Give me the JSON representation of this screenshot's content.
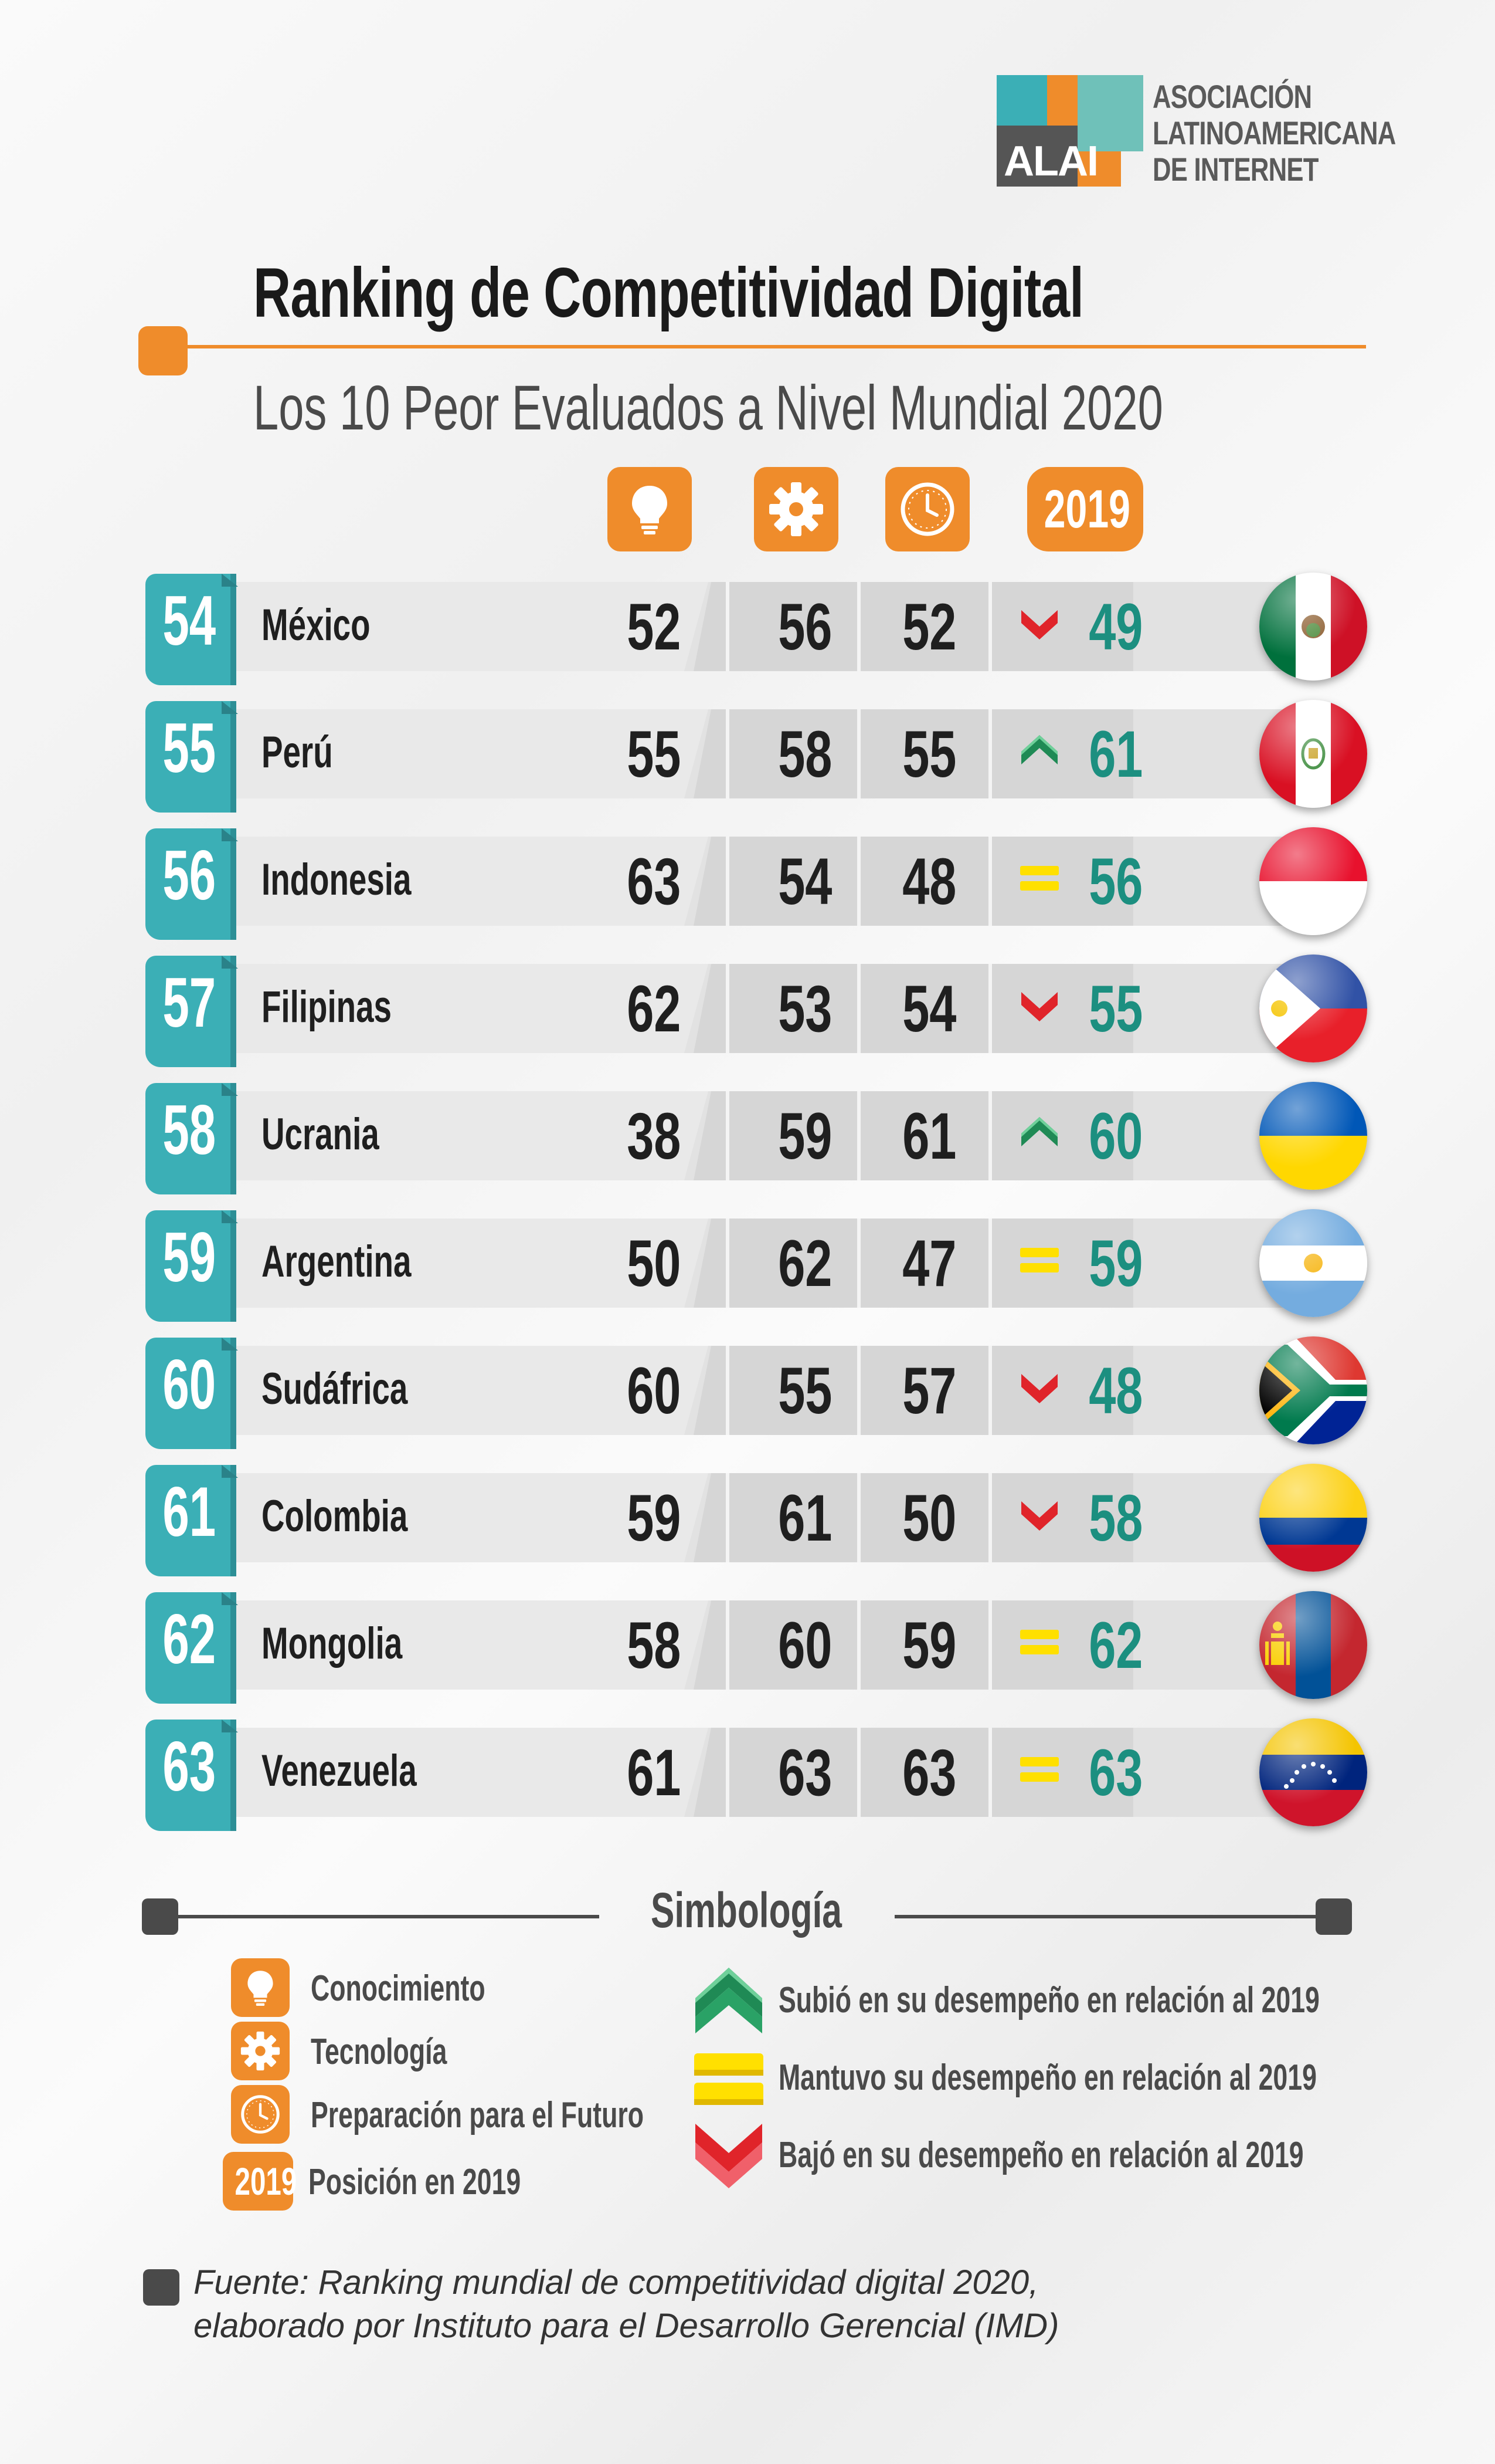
{
  "logo": {
    "abbr": "ALAI",
    "line1": "ASOCIACIÓN",
    "line2": "LATINOAMERICANA",
    "line3": "DE INTERNET"
  },
  "title": "Ranking de Competitividad Digital",
  "subtitle": "Los 10 Peor Evaluados a Nivel Mundial 2020",
  "headers": {
    "col1_icon": "lightbulb-icon",
    "col2_icon": "gear-icon",
    "col3_icon": "clock-icon",
    "year": "2019"
  },
  "colors": {
    "accent": "#ef8c2b",
    "teal": "#3bafb6",
    "green": "#1c8f80",
    "up": "#1f8a55",
    "down": "#e0242a",
    "same": "#ffe000"
  },
  "rows": [
    {
      "rank": "54",
      "country": "México",
      "c1": "52",
      "c2": "56",
      "c3": "52",
      "trend": "down",
      "prev": "49",
      "flag": "mexico-flag"
    },
    {
      "rank": "55",
      "country": "Perú",
      "c1": "55",
      "c2": "58",
      "c3": "55",
      "trend": "up",
      "prev": "61",
      "flag": "peru-flag"
    },
    {
      "rank": "56",
      "country": "Indonesia",
      "c1": "63",
      "c2": "54",
      "c3": "48",
      "trend": "same",
      "prev": "56",
      "flag": "indonesia-flag"
    },
    {
      "rank": "57",
      "country": "Filipinas",
      "c1": "62",
      "c2": "53",
      "c3": "54",
      "trend": "down",
      "prev": "55",
      "flag": "philippines-flag"
    },
    {
      "rank": "58",
      "country": "Ucrania",
      "c1": "38",
      "c2": "59",
      "c3": "61",
      "trend": "up",
      "prev": "60",
      "flag": "ukraine-flag"
    },
    {
      "rank": "59",
      "country": "Argentina",
      "c1": "50",
      "c2": "62",
      "c3": "47",
      "trend": "same",
      "prev": "59",
      "flag": "argentina-flag"
    },
    {
      "rank": "60",
      "country": "Sudáfrica",
      "c1": "60",
      "c2": "55",
      "c3": "57",
      "trend": "down",
      "prev": "48",
      "flag": "south-africa-flag"
    },
    {
      "rank": "61",
      "country": "Colombia",
      "c1": "59",
      "c2": "61",
      "c3": "50",
      "trend": "down",
      "prev": "58",
      "flag": "colombia-flag"
    },
    {
      "rank": "62",
      "country": "Mongolia",
      "c1": "58",
      "c2": "60",
      "c3": "59",
      "trend": "same",
      "prev": "62",
      "flag": "mongolia-flag"
    },
    {
      "rank": "63",
      "country": "Venezuela",
      "c1": "61",
      "c2": "63",
      "c3": "63",
      "trend": "same",
      "prev": "63",
      "flag": "venezuela-flag"
    }
  ],
  "legend": {
    "title": "Simbología",
    "knowledge": "Conocimiento",
    "technology": "Tecnología",
    "future": "Preparación para el Futuro",
    "year_badge": "2019",
    "year_label": "Posición en 2019",
    "up": "Subió en su desempeño en relación al 2019",
    "same": "Mantuvo su desempeño en relación al 2019",
    "down": "Bajó en su desempeño en relación al 2019"
  },
  "source": {
    "line1": "Fuente: Ranking mundial de competitividad digital 2020,",
    "line2": "elaborado por Instituto para el Desarrollo Gerencial (IMD)"
  }
}
